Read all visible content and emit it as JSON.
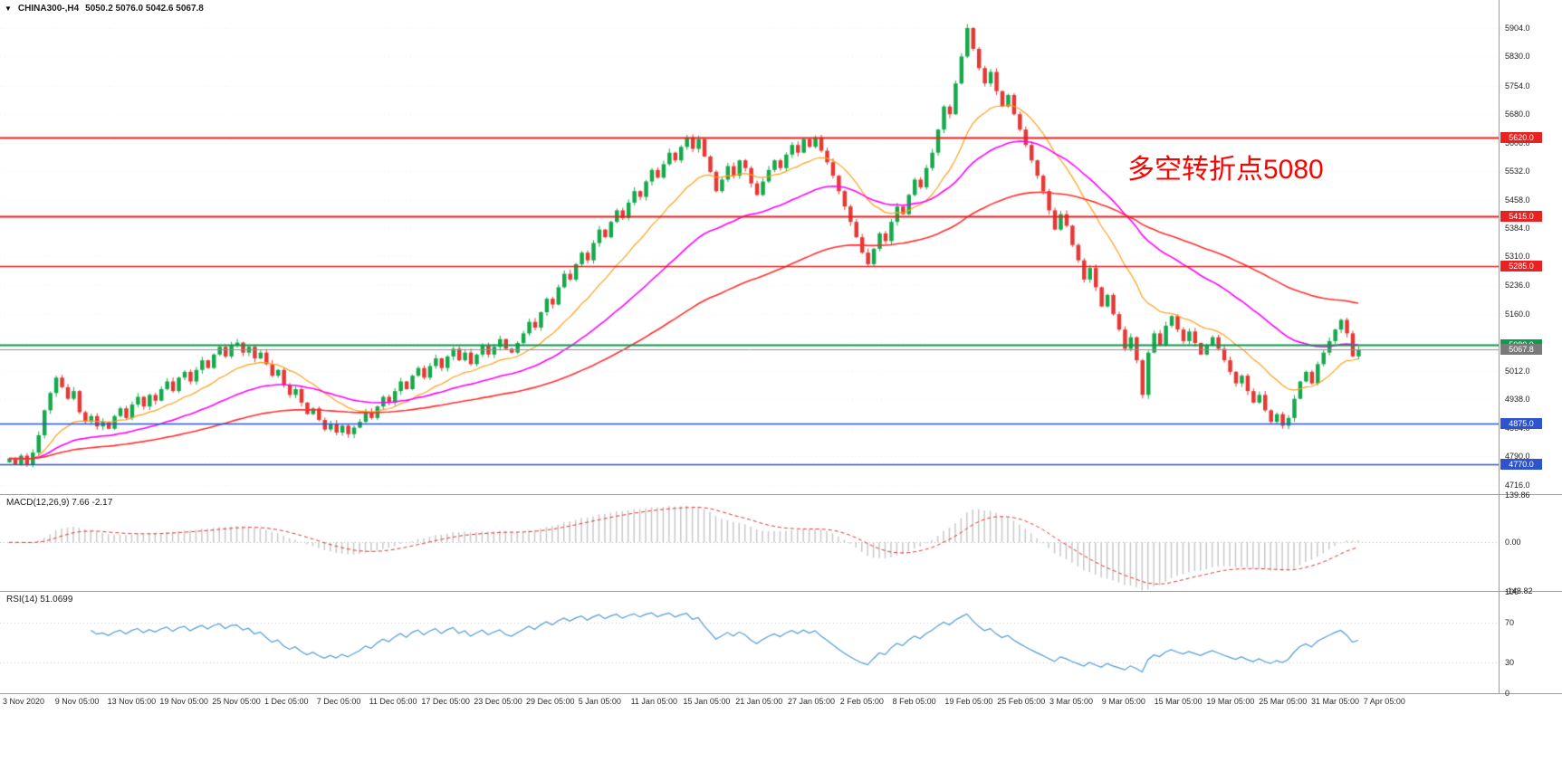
{
  "header": {
    "arrow": "▼",
    "symbol": "CHINA300-,H4",
    "ohlc": "5050.2 5076.0 5042.6 5067.8"
  },
  "annotation": {
    "text": "多空转折点5080",
    "color": "#ff0000"
  },
  "price_axis": {
    "ticks": [
      "5904.0",
      "5830.0",
      "5754.0",
      "5680.0",
      "5606.0",
      "5532.0",
      "5458.0",
      "5384.0",
      "5310.0",
      "5236.0",
      "5160.0",
      "5086.0",
      "5012.0",
      "4938.0",
      "4864.0",
      "4790.0",
      "4716.0"
    ],
    "top_price": 5977,
    "bottom_price": 4692
  },
  "main_chart": {
    "hlines": [
      {
        "label": "5620.0",
        "price": 5620.0,
        "color": "#e62222",
        "width": 2
      },
      {
        "label": "5415.0",
        "price": 5415.0,
        "color": "#e62222",
        "width": 2
      },
      {
        "label": "5285.0",
        "price": 5285.0,
        "color": "#e62222",
        "width": 1.4
      },
      {
        "label": "5080.0",
        "price": 5080.0,
        "color": "#089c4c",
        "width": 2
      },
      {
        "label": "4875.0",
        "price": 4875.0,
        "color": "#2d54cc",
        "width": 1.6
      },
      {
        "label": "4770.0",
        "price": 4770.0,
        "color": "#2d54cc",
        "width": 1.6
      }
    ],
    "current_price": {
      "label": "5067.8",
      "price": 5067.8,
      "line_color": "#8f8f8f",
      "badge_color": "#7a7a7a"
    }
  },
  "chart_data": {
    "type": "candlestick",
    "symbol": "CHINA300-",
    "timeframe": "H4",
    "up_color": "#16a94c",
    "down_color": "#e53935",
    "last_candle": {
      "open": 5050.2,
      "high": 5076.0,
      "low": 5042.6,
      "close": 5067.8
    },
    "closes": [
      4785,
      4770,
      4792,
      4768,
      4800,
      4845,
      4910,
      4955,
      4995,
      4970,
      4940,
      4960,
      4905,
      4880,
      4895,
      4868,
      4880,
      4862,
      4895,
      4915,
      4890,
      4925,
      4945,
      4920,
      4950,
      4935,
      4965,
      4985,
      4960,
      4995,
      5010,
      4985,
      5015,
      5040,
      5020,
      5055,
      5075,
      5050,
      5080,
      5086,
      5060,
      5075,
      5045,
      5060,
      5030,
      5000,
      5015,
      4975,
      4950,
      4965,
      4930,
      4900,
      4915,
      4885,
      4860,
      4875,
      4852,
      4870,
      4848,
      4865,
      4880,
      4905,
      4890,
      4920,
      4945,
      4930,
      4960,
      4985,
      4965,
      5000,
      5020,
      4995,
      5025,
      5045,
      5020,
      5050,
      5070,
      5040,
      5060,
      5030,
      5055,
      5080,
      5055,
      5075,
      5095,
      5070,
      5060,
      5085,
      5110,
      5140,
      5125,
      5165,
      5200,
      5185,
      5230,
      5265,
      5250,
      5290,
      5320,
      5300,
      5345,
      5380,
      5360,
      5400,
      5430,
      5410,
      5450,
      5480,
      5465,
      5505,
      5535,
      5515,
      5550,
      5580,
      5560,
      5595,
      5620,
      5590,
      5615,
      5570,
      5530,
      5480,
      5510,
      5545,
      5520,
      5560,
      5540,
      5500,
      5470,
      5505,
      5535,
      5560,
      5540,
      5575,
      5600,
      5580,
      5615,
      5595,
      5620,
      5585,
      5555,
      5520,
      5480,
      5440,
      5400,
      5360,
      5320,
      5290,
      5330,
      5370,
      5350,
      5400,
      5440,
      5420,
      5470,
      5510,
      5490,
      5540,
      5580,
      5640,
      5700,
      5680,
      5760,
      5830,
      5904,
      5850,
      5800,
      5760,
      5790,
      5740,
      5700,
      5730,
      5680,
      5640,
      5600,
      5560,
      5520,
      5480,
      5430,
      5380,
      5420,
      5390,
      5340,
      5300,
      5250,
      5280,
      5230,
      5180,
      5210,
      5160,
      5120,
      5070,
      5100,
      5040,
      4950,
      5060,
      5110,
      5080,
      5130,
      5155,
      5120,
      5090,
      5115,
      5085,
      5055,
      5080,
      5100,
      5070,
      5040,
      5010,
      4980,
      5000,
      4960,
      4930,
      4950,
      4910,
      4880,
      4900,
      4870,
      4890,
      4940,
      4985,
      5010,
      4980,
      5030,
      5060,
      5090,
      5120,
      5145,
      5110,
      5050.2,
      5067.8
    ],
    "x_labels": [
      "3 Nov 2020",
      "9 Nov 05:00",
      "13 Nov 05:00",
      "19 Nov 05:00",
      "25 Nov 05:00",
      "1 Dec 05:00",
      "7 Dec 05:00",
      "11 Dec 05:00",
      "17 Dec 05:00",
      "23 Dec 05:00",
      "29 Dec 05:00",
      "5 Jan 05:00",
      "11 Jan 05:00",
      "15 Jan 05:00",
      "21 Jan 05:00",
      "27 Jan 05:00",
      "2 Feb 05:00",
      "8 Feb 05:00",
      "19 Feb 05:00",
      "25 Feb 05:00",
      "3 Mar 05:00",
      "9 Mar 05:00",
      "15 Mar 05:00",
      "19 Mar 05:00",
      "25 Mar 05:00",
      "31 Mar 05:00",
      "7 Apr 05:00"
    ],
    "overlays": [
      {
        "name": "ma-fast",
        "color": "#ff9f1a",
        "period": 16
      },
      {
        "name": "ma-mid",
        "color": "#ff00ff",
        "period": 40
      },
      {
        "name": "ma-slow",
        "color": "#ff2e2e",
        "period": 90
      }
    ]
  },
  "macd_panel": {
    "title": "MACD(12,26,9)",
    "values": "7.66 -2.17",
    "fast": 12,
    "slow": 26,
    "signal": 9,
    "max": 139.86,
    "min": -143.82,
    "axis_labels": [
      "139.86",
      "0.00",
      "-143.82"
    ],
    "histogram_color": "#c8c8c8",
    "signal_color": "#e03131"
  },
  "rsi_panel": {
    "title": "RSI(14)",
    "value": "51.0699",
    "period": 14,
    "levels": [
      70,
      30
    ],
    "axis_labels": [
      "100",
      "70",
      "30",
      "0"
    ],
    "line_color": "#4f9bd8"
  }
}
